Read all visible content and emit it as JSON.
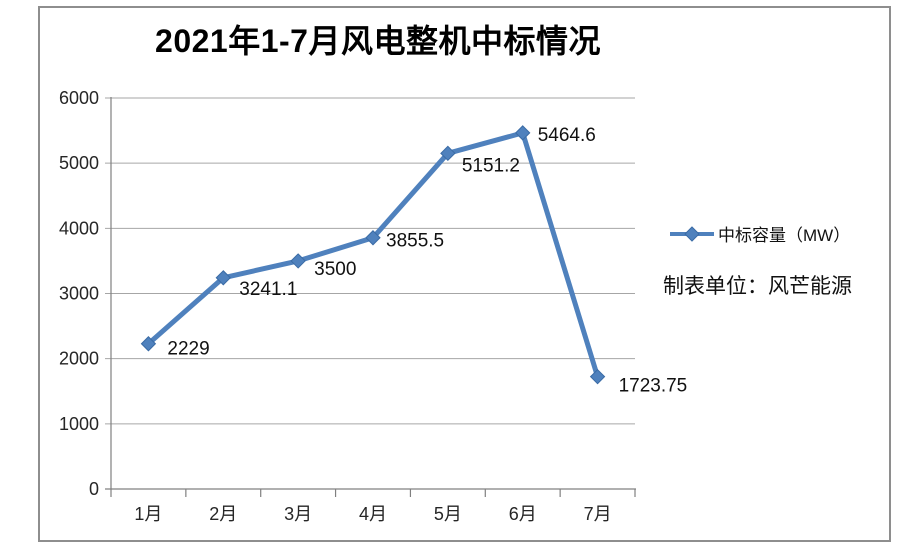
{
  "window": {
    "background": "#ffffff",
    "frame_border_color": "#8e8e8e"
  },
  "chart_data": {
    "type": "line",
    "title": "2021年1-7月风电整机中标情况",
    "categories": [
      "1月",
      "2月",
      "3月",
      "4月",
      "5月",
      "6月",
      "7月"
    ],
    "series": [
      {
        "name": "中标容量（MW）",
        "values": [
          2229,
          3241.1,
          3500,
          3855.5,
          5151.2,
          5464.6,
          1723.75
        ]
      }
    ],
    "data_labels": [
      "2229",
      "3241.1",
      "3500",
      "3855.5",
      "5151.2",
      "5464.6",
      "1723.75"
    ],
    "xlabel": "",
    "ylabel": "",
    "ylim": [
      0,
      6000
    ],
    "ytick_step": 1000,
    "ytick_labels": [
      "0",
      "1000",
      "2000",
      "3000",
      "4000",
      "5000",
      "6000"
    ],
    "grid": true,
    "legend_position": "right",
    "marker": "diamond",
    "series_color": "#4F81BD",
    "marker_edge_color": "#3A6BA5",
    "gridline_color": "#a6a6a6",
    "axis_color": "#808080",
    "annotation": "制表单位：风芒能源"
  }
}
